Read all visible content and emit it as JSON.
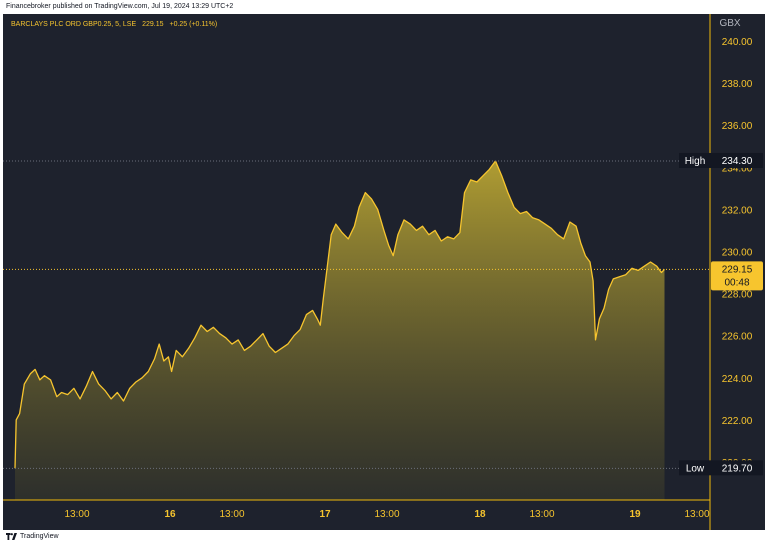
{
  "header": {
    "published_text": "Financebroker published on TradingView.com, Jul 19, 2024 13:29 UTC+2"
  },
  "symbol_line": {
    "name": "BARCLAYS PLC ORD GBP0.25, 5, LSE",
    "price": "229.15",
    "change": "+0.25 (+0.11%)"
  },
  "footer": {
    "brand": "TradingView"
  },
  "colors": {
    "background": "#1e222d",
    "line": "#f7c52e",
    "label": "#f7c52e",
    "axis_text": "#b2b5be",
    "separator": "#f0b90b"
  },
  "chart_data": {
    "type": "area",
    "currency": "GBX",
    "ylim": [
      219.0,
      241.0
    ],
    "y_ticks": [
      "240.00",
      "238.00",
      "236.00",
      "234.00",
      "232.00",
      "230.00",
      "228.00",
      "226.00",
      "224.00",
      "222.00",
      "220.00"
    ],
    "x_ticks": [
      {
        "label": "13:00",
        "t": 0.4
      },
      {
        "label": "16",
        "t": 1.0
      },
      {
        "label": "13:00",
        "t": 1.4
      },
      {
        "label": "17",
        "t": 2.0
      },
      {
        "label": "13:00",
        "t": 2.4
      },
      {
        "label": "18",
        "t": 3.0
      },
      {
        "label": "13:00",
        "t": 3.4
      },
      {
        "label": "19",
        "t": 4.0
      },
      {
        "label": "13:00",
        "t": 4.4
      }
    ],
    "high": {
      "label": "High",
      "value": "234.30"
    },
    "low": {
      "label": "Low",
      "value": "219.70"
    },
    "last": {
      "value": "229.15",
      "countdown": "00:48"
    },
    "points": [
      [
        0.0,
        219.7
      ],
      [
        0.008,
        222.0
      ],
      [
        0.03,
        222.3
      ],
      [
        0.06,
        223.7
      ],
      [
        0.1,
        224.2
      ],
      [
        0.13,
        224.4
      ],
      [
        0.16,
        223.9
      ],
      [
        0.19,
        224.1
      ],
      [
        0.23,
        223.9
      ],
      [
        0.27,
        223.1
      ],
      [
        0.3,
        223.3
      ],
      [
        0.34,
        223.2
      ],
      [
        0.38,
        223.5
      ],
      [
        0.42,
        223.0
      ],
      [
        0.46,
        223.6
      ],
      [
        0.5,
        224.3
      ],
      [
        0.54,
        223.7
      ],
      [
        0.58,
        223.4
      ],
      [
        0.62,
        223.0
      ],
      [
        0.66,
        223.3
      ],
      [
        0.7,
        222.9
      ],
      [
        0.74,
        223.5
      ],
      [
        0.78,
        223.8
      ],
      [
        0.82,
        224.0
      ],
      [
        0.86,
        224.3
      ],
      [
        0.9,
        224.9
      ],
      [
        0.93,
        225.6
      ],
      [
        0.96,
        224.8
      ],
      [
        0.99,
        225.0
      ],
      [
        1.01,
        224.3
      ],
      [
        1.04,
        225.3
      ],
      [
        1.08,
        225.0
      ],
      [
        1.12,
        225.4
      ],
      [
        1.16,
        225.9
      ],
      [
        1.2,
        226.5
      ],
      [
        1.24,
        226.2
      ],
      [
        1.28,
        226.4
      ],
      [
        1.32,
        226.1
      ],
      [
        1.36,
        225.9
      ],
      [
        1.4,
        225.6
      ],
      [
        1.44,
        225.8
      ],
      [
        1.48,
        225.3
      ],
      [
        1.52,
        225.5
      ],
      [
        1.56,
        225.8
      ],
      [
        1.6,
        226.1
      ],
      [
        1.64,
        225.5
      ],
      [
        1.68,
        225.2
      ],
      [
        1.72,
        225.4
      ],
      [
        1.76,
        225.6
      ],
      [
        1.8,
        226.0
      ],
      [
        1.84,
        226.3
      ],
      [
        1.88,
        227.0
      ],
      [
        1.92,
        227.2
      ],
      [
        1.95,
        226.8
      ],
      [
        1.97,
        226.5
      ],
      [
        1.99,
        227.8
      ],
      [
        2.02,
        229.6
      ],
      [
        2.04,
        230.8
      ],
      [
        2.07,
        231.3
      ],
      [
        2.11,
        230.9
      ],
      [
        2.15,
        230.6
      ],
      [
        2.19,
        231.2
      ],
      [
        2.22,
        232.1
      ],
      [
        2.26,
        232.8
      ],
      [
        2.3,
        232.5
      ],
      [
        2.34,
        232.0
      ],
      [
        2.38,
        231.0
      ],
      [
        2.41,
        230.3
      ],
      [
        2.44,
        229.8
      ],
      [
        2.47,
        230.8
      ],
      [
        2.51,
        231.5
      ],
      [
        2.55,
        231.3
      ],
      [
        2.59,
        231.0
      ],
      [
        2.63,
        231.2
      ],
      [
        2.67,
        230.8
      ],
      [
        2.71,
        231.0
      ],
      [
        2.75,
        230.5
      ],
      [
        2.79,
        230.7
      ],
      [
        2.83,
        230.6
      ],
      [
        2.87,
        230.9
      ],
      [
        2.9,
        232.8
      ],
      [
        2.94,
        233.4
      ],
      [
        2.98,
        233.3
      ],
      [
        3.02,
        233.6
      ],
      [
        3.06,
        233.9
      ],
      [
        3.1,
        234.3
      ],
      [
        3.14,
        233.6
      ],
      [
        3.18,
        232.8
      ],
      [
        3.22,
        232.1
      ],
      [
        3.26,
        231.8
      ],
      [
        3.3,
        231.9
      ],
      [
        3.34,
        231.6
      ],
      [
        3.38,
        231.5
      ],
      [
        3.42,
        231.3
      ],
      [
        3.46,
        231.1
      ],
      [
        3.5,
        230.8
      ],
      [
        3.54,
        230.6
      ],
      [
        3.58,
        231.4
      ],
      [
        3.62,
        231.2
      ],
      [
        3.65,
        230.4
      ],
      [
        3.68,
        229.8
      ],
      [
        3.71,
        229.5
      ],
      [
        3.73,
        228.6
      ],
      [
        3.745,
        225.8
      ],
      [
        3.77,
        226.8
      ],
      [
        3.8,
        227.3
      ],
      [
        3.83,
        228.2
      ],
      [
        3.86,
        228.7
      ],
      [
        3.9,
        228.8
      ],
      [
        3.94,
        228.9
      ],
      [
        3.98,
        229.2
      ],
      [
        4.02,
        229.1
      ],
      [
        4.06,
        229.3
      ],
      [
        4.1,
        229.5
      ],
      [
        4.14,
        229.3
      ],
      [
        4.17,
        229.0
      ],
      [
        4.19,
        229.15
      ]
    ]
  }
}
